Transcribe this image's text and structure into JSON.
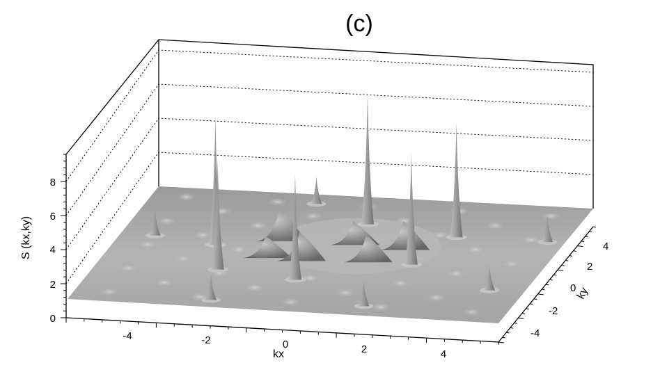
{
  "chart_data": {
    "type": "surface3d",
    "title": "(c)",
    "xlabel": "kx",
    "ylabel": "ky",
    "zlabel": "S (kx,ky)",
    "xlim": [
      -5,
      5
    ],
    "ylim": [
      -5,
      5
    ],
    "zlim": [
      0,
      9
    ],
    "xticks": [
      "-4",
      "-2",
      "0",
      "2",
      "4"
    ],
    "yticks": [
      "4",
      "2",
      "0",
      "-2",
      "-4"
    ],
    "zticks": [
      "0",
      "2",
      "4",
      "6",
      "8"
    ],
    "grid": "dotted horizontal lines on back wall",
    "surface_color": "#a8a8a8",
    "peaks": [
      {
        "kx": 0.3,
        "ky": 2.7,
        "S": 7.8
      },
      {
        "kx": -2.7,
        "ky": 0.3,
        "S": 7.6
      },
      {
        "kx": 2.5,
        "ky": 2.0,
        "S": 6.8
      },
      {
        "kx": 2.0,
        "ky": -0.5,
        "S": 6.6
      },
      {
        "kx": -2.2,
        "ky": -1.8,
        "S": 6.5
      },
      {
        "kx": -0.3,
        "ky": -2.3,
        "S": 6.3
      },
      {
        "kx": -1.2,
        "ky": 4.2,
        "S": 1.6
      },
      {
        "kx": 4.6,
        "ky": 2.0,
        "S": 1.6
      },
      {
        "kx": -4.2,
        "ky": 0.8,
        "S": 1.5
      },
      {
        "kx": -1.8,
        "ky": -4.4,
        "S": 1.5
      },
      {
        "kx": 4.2,
        "ky": -2.3,
        "S": 1.5
      },
      {
        "kx": 1.7,
        "ky": -4.2,
        "S": 1.5
      }
    ],
    "ring_humps": [
      {
        "kx": -1.3,
        "ky": 0.9,
        "S": 1.9
      },
      {
        "kx": -0.5,
        "ky": -0.7,
        "S": 1.7
      },
      {
        "kx": -1.3,
        "ky": -0.6,
        "S": 1.3
      },
      {
        "kx": 1.6,
        "ky": 0.7,
        "S": 1.7
      },
      {
        "kx": 1.0,
        "ky": -0.5,
        "S": 1.6
      },
      {
        "kx": 0.4,
        "ky": 0.9,
        "S": 1.4
      }
    ]
  }
}
